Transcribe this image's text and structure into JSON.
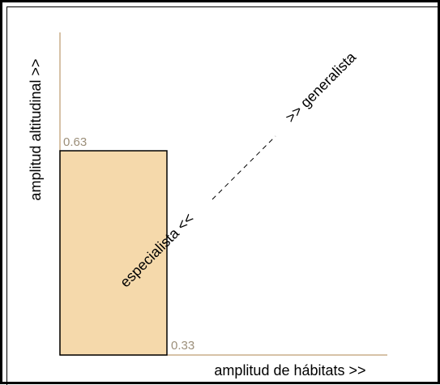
{
  "diagram": {
    "y_axis_label": "amplitud altitudinal >>",
    "x_axis_label": "amplitud de hábitats >>",
    "y_value_label": "0.63",
    "x_value_label": "0.33",
    "diagonal_left_label": "especialista <<",
    "diagonal_right_label": ">> generalista",
    "colors": {
      "axis": "#c8ad8a",
      "box_fill": "#f5d9ab",
      "box_stroke": "#000000",
      "value_text": "#9c8f7a",
      "text": "#000000",
      "frame": "#000000"
    }
  }
}
